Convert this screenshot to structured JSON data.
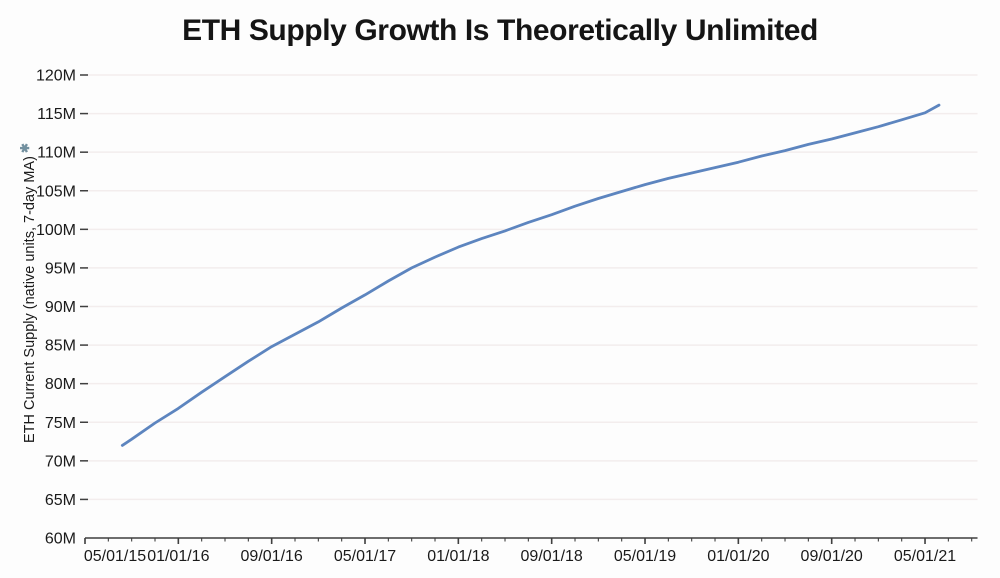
{
  "colors": {
    "line": "#5d85bf",
    "grid": "#f3eded",
    "axis": "#3f3f3f",
    "tick_text": "#1a1a1a",
    "title_text": "#151515",
    "footnote_marker": "#72909f",
    "background": "#fdfdfd"
  },
  "chart_data": {
    "type": "line",
    "title": "ETH Supply Growth Is Theoretically Unlimited",
    "xlabel": "",
    "ylabel": "ETH Current Supply (native units, 7-day MA)",
    "ylabel_footnote_marker": "✱",
    "ylim": [
      60,
      120
    ],
    "grid": "horizontal",
    "legend": "none",
    "line_color": "#5d85bf",
    "yticks": [
      {
        "value": 60,
        "label": "60M"
      },
      {
        "value": 65,
        "label": "65M"
      },
      {
        "value": 70,
        "label": "70M"
      },
      {
        "value": 75,
        "label": "75M"
      },
      {
        "value": 80,
        "label": "80M"
      },
      {
        "value": 85,
        "label": "85M"
      },
      {
        "value": 90,
        "label": "90M"
      },
      {
        "value": 95,
        "label": "95M"
      },
      {
        "value": 100,
        "label": "100M"
      },
      {
        "value": 105,
        "label": "105M"
      },
      {
        "value": 110,
        "label": "110M"
      },
      {
        "value": 115,
        "label": "115M"
      },
      {
        "value": 120,
        "label": "120M"
      }
    ],
    "xticks": [
      {
        "months": 0,
        "label": "05/01/15"
      },
      {
        "months": 8,
        "label": "01/01/16"
      },
      {
        "months": 16,
        "label": "09/01/16"
      },
      {
        "months": 24,
        "label": "05/01/17"
      },
      {
        "months": 32,
        "label": "01/01/18"
      },
      {
        "months": 40,
        "label": "09/01/18"
      },
      {
        "months": 48,
        "label": "05/01/19"
      },
      {
        "months": 56,
        "label": "01/01/20"
      },
      {
        "months": 64,
        "label": "09/01/20"
      },
      {
        "months": 72,
        "label": "05/01/21"
      }
    ],
    "x_minor_tick_months": 2,
    "x_axis_end_months": 76.5,
    "series": [
      {
        "name": "ETH Current Supply (native units, 7-day MA)",
        "points": [
          [
            "08/07/15",
            3.2,
            72.0
          ],
          [
            "09/01/15",
            4,
            72.8
          ],
          [
            "11/01/15",
            6,
            74.9
          ],
          [
            "01/01/16",
            8,
            76.8
          ],
          [
            "03/01/16",
            10,
            78.9
          ],
          [
            "05/01/16",
            12,
            80.9
          ],
          [
            "07/01/16",
            14,
            82.9
          ],
          [
            "09/01/16",
            16,
            84.8
          ],
          [
            "11/01/16",
            18,
            86.4
          ],
          [
            "01/01/17",
            20,
            88.0
          ],
          [
            "03/01/17",
            22,
            89.8
          ],
          [
            "05/01/17",
            24,
            91.5
          ],
          [
            "07/01/17",
            26,
            93.3
          ],
          [
            "09/01/17",
            28,
            95.0
          ],
          [
            "11/01/17",
            30,
            96.4
          ],
          [
            "01/01/18",
            32,
            97.7
          ],
          [
            "03/01/18",
            34,
            98.8
          ],
          [
            "05/01/18",
            36,
            99.8
          ],
          [
            "07/01/18",
            38,
            100.9
          ],
          [
            "09/01/18",
            40,
            101.9
          ],
          [
            "11/01/18",
            42,
            103.0
          ],
          [
            "01/01/19",
            44,
            104.0
          ],
          [
            "03/01/19",
            46,
            104.9
          ],
          [
            "05/01/19",
            48,
            105.8
          ],
          [
            "07/01/19",
            50,
            106.6
          ],
          [
            "09/01/19",
            52,
            107.3
          ],
          [
            "11/01/19",
            54,
            108.0
          ],
          [
            "01/01/20",
            56,
            108.7
          ],
          [
            "03/01/20",
            58,
            109.5
          ],
          [
            "05/01/20",
            60,
            110.2
          ],
          [
            "07/01/20",
            62,
            111.0
          ],
          [
            "09/01/20",
            64,
            111.7
          ],
          [
            "11/01/20",
            66,
            112.5
          ],
          [
            "01/01/21",
            68,
            113.3
          ],
          [
            "03/01/21",
            70,
            114.2
          ],
          [
            "05/01/21",
            72,
            115.1
          ],
          [
            "06/07/21",
            73.2,
            116.1
          ]
        ]
      }
    ]
  }
}
